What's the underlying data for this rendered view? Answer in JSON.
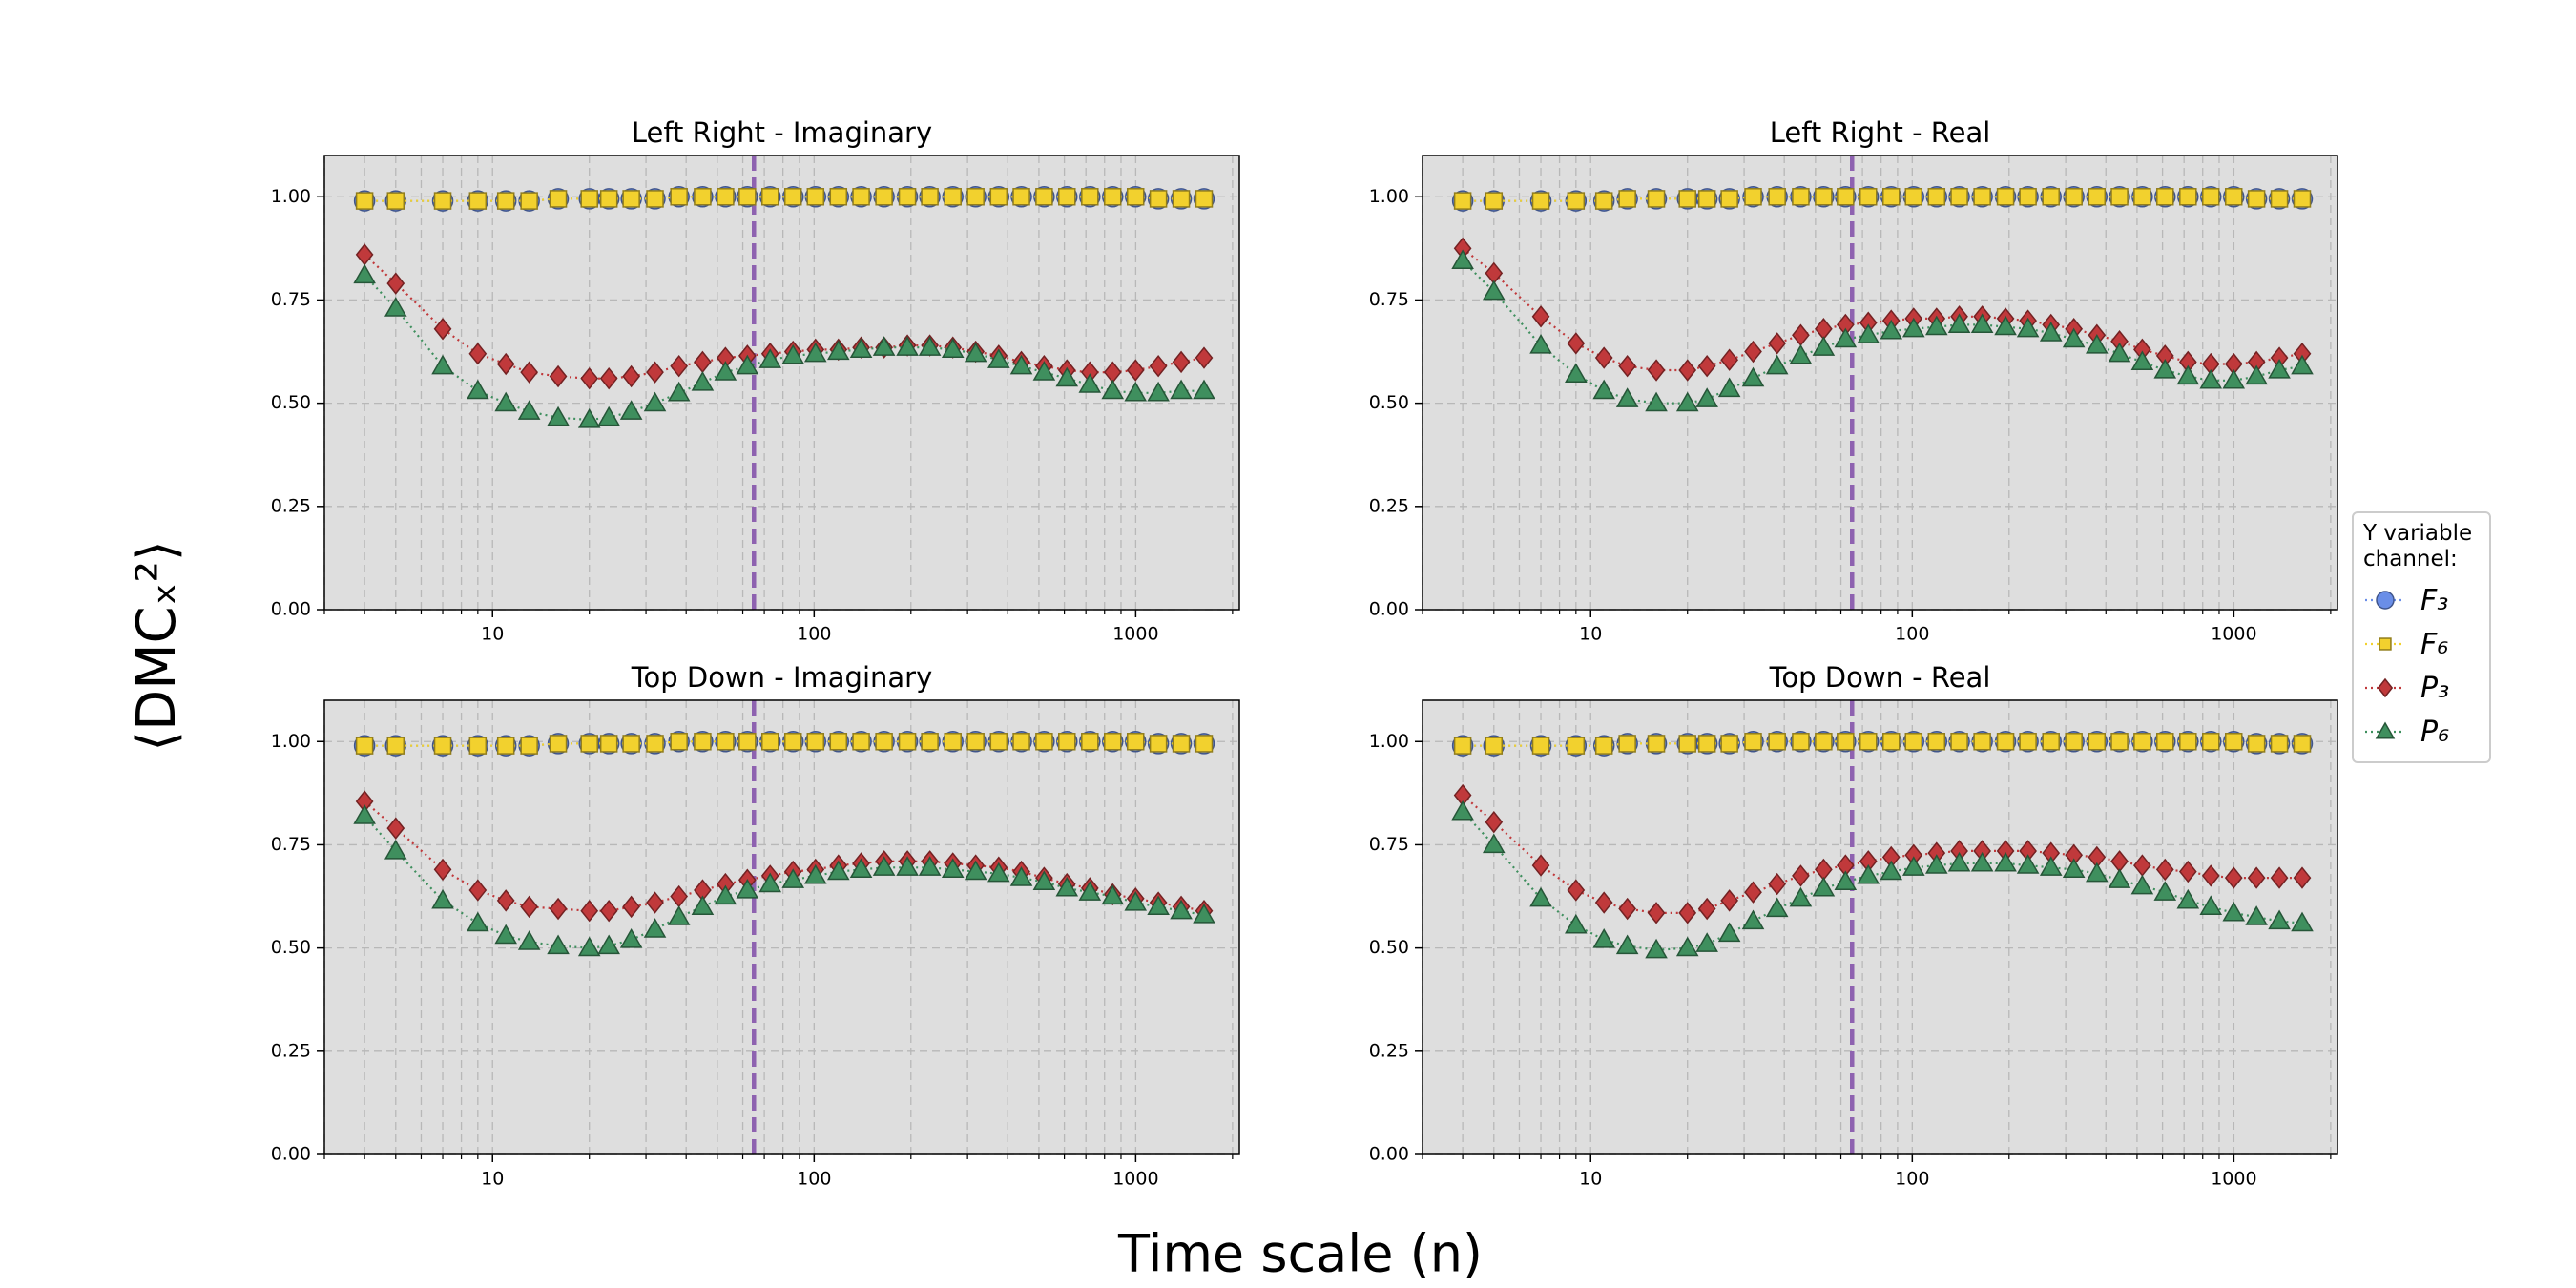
{
  "figure": {
    "xlabel": "Time scale (n)",
    "ylabel": "⟨DMCₓ²⟩",
    "legend_title": "Y variable channel:"
  },
  "chart_data": [
    {
      "type": "line",
      "title": "Left Right - Imaginary",
      "log_x": true,
      "grid": true,
      "x": [
        4,
        5,
        7,
        9,
        11,
        13,
        16,
        20,
        23,
        27,
        32,
        38,
        45,
        53,
        62,
        73,
        86,
        101,
        119,
        140,
        165,
        195,
        229,
        270,
        318,
        375,
        441,
        519,
        611,
        720,
        848,
        999,
        1176,
        1385,
        1631
      ],
      "xlim": [
        3,
        2100
      ],
      "xticks": [
        10,
        100,
        1000
      ],
      "xminor": [
        3,
        4,
        5,
        6,
        7,
        8,
        9,
        20,
        30,
        40,
        50,
        60,
        70,
        80,
        90,
        200,
        300,
        400,
        500,
        600,
        700,
        800,
        900,
        2000
      ],
      "ylim": [
        0,
        1.1
      ],
      "yticks": [
        {
          "value": 0,
          "label": "0.00"
        },
        {
          "value": 0.25,
          "label": "0.25"
        },
        {
          "value": 0.5,
          "label": "0.50"
        },
        {
          "value": 0.75,
          "label": "0.75"
        },
        {
          "value": 1,
          "label": "1.00"
        }
      ],
      "vline": {
        "x": 65,
        "color": "#8e62b0"
      },
      "series": [
        {
          "name": "F₃",
          "color": "#6a8ee8",
          "marker": "circle",
          "values": [
            0.99,
            0.99,
            0.99,
            0.99,
            0.99,
            0.99,
            0.995,
            0.995,
            0.995,
            0.995,
            0.995,
            1,
            1,
            1,
            1,
            1,
            1,
            1,
            1,
            1,
            1,
            1,
            1,
            1,
            1,
            1,
            1,
            1,
            1,
            1,
            1,
            1,
            0.995,
            0.995,
            0.995
          ]
        },
        {
          "name": "F₆",
          "color": "#f2d12e",
          "marker": "square",
          "values": [
            0.99,
            0.99,
            0.99,
            0.99,
            0.99,
            0.99,
            0.995,
            0.995,
            0.995,
            0.995,
            0.995,
            1,
            1,
            1,
            1,
            1,
            1,
            1,
            1,
            1,
            1,
            1,
            1,
            1,
            1,
            1,
            1,
            1,
            1,
            1,
            1,
            1,
            0.995,
            0.995,
            0.995
          ]
        },
        {
          "name": "P₃",
          "color": "#c0393b",
          "marker": "diamond",
          "values": [
            0.86,
            0.79,
            0.68,
            0.62,
            0.595,
            0.575,
            0.565,
            0.56,
            0.56,
            0.565,
            0.575,
            0.59,
            0.6,
            0.61,
            0.615,
            0.62,
            0.625,
            0.63,
            0.63,
            0.635,
            0.635,
            0.64,
            0.64,
            0.635,
            0.625,
            0.615,
            0.6,
            0.59,
            0.58,
            0.575,
            0.575,
            0.58,
            0.59,
            0.6,
            0.61
          ]
        },
        {
          "name": "P₆",
          "color": "#3f8f5e",
          "marker": "triangle",
          "values": [
            0.81,
            0.73,
            0.59,
            0.53,
            0.5,
            0.48,
            0.465,
            0.46,
            0.465,
            0.48,
            0.5,
            0.525,
            0.55,
            0.575,
            0.59,
            0.605,
            0.615,
            0.62,
            0.625,
            0.63,
            0.635,
            0.635,
            0.635,
            0.63,
            0.62,
            0.605,
            0.59,
            0.575,
            0.56,
            0.545,
            0.53,
            0.525,
            0.525,
            0.53,
            0.53
          ]
        }
      ]
    },
    {
      "type": "line",
      "title": "Left Right - Real",
      "log_x": true,
      "grid": true,
      "x": [
        4,
        5,
        7,
        9,
        11,
        13,
        16,
        20,
        23,
        27,
        32,
        38,
        45,
        53,
        62,
        73,
        86,
        101,
        119,
        140,
        165,
        195,
        229,
        270,
        318,
        375,
        441,
        519,
        611,
        720,
        848,
        999,
        1176,
        1385,
        1631
      ],
      "xlim": [
        3,
        2100
      ],
      "xticks": [
        10,
        100,
        1000
      ],
      "xminor": [
        3,
        4,
        5,
        6,
        7,
        8,
        9,
        20,
        30,
        40,
        50,
        60,
        70,
        80,
        90,
        200,
        300,
        400,
        500,
        600,
        700,
        800,
        900,
        2000
      ],
      "ylim": [
        0,
        1.1
      ],
      "yticks": [
        {
          "value": 0,
          "label": "0.00"
        },
        {
          "value": 0.25,
          "label": "0.25"
        },
        {
          "value": 0.5,
          "label": "0.50"
        },
        {
          "value": 0.75,
          "label": "0.75"
        },
        {
          "value": 1,
          "label": "1.00"
        }
      ],
      "vline": {
        "x": 65,
        "color": "#8e62b0"
      },
      "series": [
        {
          "name": "F₃",
          "color": "#6a8ee8",
          "marker": "circle",
          "values": [
            0.99,
            0.99,
            0.99,
            0.99,
            0.99,
            0.995,
            0.995,
            0.995,
            0.995,
            0.995,
            1,
            1,
            1,
            1,
            1,
            1,
            1,
            1,
            1,
            1,
            1,
            1,
            1,
            1,
            1,
            1,
            1,
            1,
            1,
            1,
            1,
            1,
            0.995,
            0.995,
            0.995
          ]
        },
        {
          "name": "F₆",
          "color": "#f2d12e",
          "marker": "square",
          "values": [
            0.99,
            0.99,
            0.99,
            0.99,
            0.99,
            0.995,
            0.995,
            0.995,
            0.995,
            0.995,
            1,
            1,
            1,
            1,
            1,
            1,
            1,
            1,
            1,
            1,
            1,
            1,
            1,
            1,
            1,
            1,
            1,
            1,
            1,
            1,
            1,
            1,
            0.995,
            0.995,
            0.995
          ]
        },
        {
          "name": "P₃",
          "color": "#c0393b",
          "marker": "diamond",
          "values": [
            0.875,
            0.815,
            0.71,
            0.645,
            0.61,
            0.59,
            0.58,
            0.58,
            0.59,
            0.605,
            0.625,
            0.645,
            0.665,
            0.68,
            0.69,
            0.695,
            0.7,
            0.705,
            0.705,
            0.71,
            0.71,
            0.705,
            0.7,
            0.69,
            0.68,
            0.665,
            0.65,
            0.63,
            0.615,
            0.6,
            0.595,
            0.595,
            0.6,
            0.61,
            0.62
          ]
        },
        {
          "name": "P₆",
          "color": "#3f8f5e",
          "marker": "triangle",
          "values": [
            0.845,
            0.77,
            0.64,
            0.57,
            0.53,
            0.51,
            0.5,
            0.5,
            0.51,
            0.535,
            0.56,
            0.59,
            0.615,
            0.635,
            0.655,
            0.665,
            0.675,
            0.68,
            0.685,
            0.69,
            0.69,
            0.685,
            0.68,
            0.67,
            0.655,
            0.64,
            0.62,
            0.6,
            0.58,
            0.565,
            0.555,
            0.555,
            0.565,
            0.58,
            0.59
          ]
        }
      ]
    },
    {
      "type": "line",
      "title": "Top Down - Imaginary",
      "log_x": true,
      "grid": true,
      "x": [
        4,
        5,
        7,
        9,
        11,
        13,
        16,
        20,
        23,
        27,
        32,
        38,
        45,
        53,
        62,
        73,
        86,
        101,
        119,
        140,
        165,
        195,
        229,
        270,
        318,
        375,
        441,
        519,
        611,
        720,
        848,
        999,
        1176,
        1385,
        1631
      ],
      "xlim": [
        3,
        2100
      ],
      "xticks": [
        10,
        100,
        1000
      ],
      "xminor": [
        3,
        4,
        5,
        6,
        7,
        8,
        9,
        20,
        30,
        40,
        50,
        60,
        70,
        80,
        90,
        200,
        300,
        400,
        500,
        600,
        700,
        800,
        900,
        2000
      ],
      "ylim": [
        0,
        1.1
      ],
      "yticks": [
        {
          "value": 0,
          "label": "0.00"
        },
        {
          "value": 0.25,
          "label": "0.25"
        },
        {
          "value": 0.5,
          "label": "0.50"
        },
        {
          "value": 0.75,
          "label": "0.75"
        },
        {
          "value": 1,
          "label": "1.00"
        }
      ],
      "vline": {
        "x": 65,
        "color": "#8e62b0"
      },
      "series": [
        {
          "name": "F₃",
          "color": "#6a8ee8",
          "marker": "circle",
          "values": [
            0.99,
            0.99,
            0.99,
            0.99,
            0.99,
            0.99,
            0.995,
            0.995,
            0.995,
            0.995,
            0.995,
            1,
            1,
            1,
            1,
            1,
            1,
            1,
            1,
            1,
            1,
            1,
            1,
            1,
            1,
            1,
            1,
            1,
            1,
            1,
            1,
            1,
            0.995,
            0.995,
            0.995
          ]
        },
        {
          "name": "F₆",
          "color": "#f2d12e",
          "marker": "square",
          "values": [
            0.99,
            0.99,
            0.99,
            0.99,
            0.99,
            0.99,
            0.995,
            0.995,
            0.995,
            0.995,
            0.995,
            1,
            1,
            1,
            1,
            1,
            1,
            1,
            1,
            1,
            1,
            1,
            1,
            1,
            1,
            1,
            1,
            1,
            1,
            1,
            1,
            1,
            0.995,
            0.995,
            0.995
          ]
        },
        {
          "name": "P₃",
          "color": "#c0393b",
          "marker": "diamond",
          "values": [
            0.855,
            0.79,
            0.69,
            0.64,
            0.615,
            0.6,
            0.595,
            0.59,
            0.59,
            0.6,
            0.61,
            0.625,
            0.64,
            0.655,
            0.665,
            0.675,
            0.685,
            0.69,
            0.7,
            0.705,
            0.71,
            0.71,
            0.71,
            0.705,
            0.7,
            0.695,
            0.685,
            0.67,
            0.655,
            0.645,
            0.63,
            0.62,
            0.61,
            0.6,
            0.59
          ]
        },
        {
          "name": "P₆",
          "color": "#3f8f5e",
          "marker": "triangle",
          "values": [
            0.82,
            0.735,
            0.615,
            0.56,
            0.53,
            0.515,
            0.505,
            0.5,
            0.505,
            0.52,
            0.545,
            0.575,
            0.6,
            0.625,
            0.64,
            0.655,
            0.665,
            0.675,
            0.685,
            0.69,
            0.695,
            0.695,
            0.695,
            0.69,
            0.685,
            0.68,
            0.67,
            0.66,
            0.645,
            0.635,
            0.625,
            0.61,
            0.6,
            0.59,
            0.58
          ]
        }
      ]
    },
    {
      "type": "line",
      "title": "Top Down - Real",
      "log_x": true,
      "grid": true,
      "x": [
        4,
        5,
        7,
        9,
        11,
        13,
        16,
        20,
        23,
        27,
        32,
        38,
        45,
        53,
        62,
        73,
        86,
        101,
        119,
        140,
        165,
        195,
        229,
        270,
        318,
        375,
        441,
        519,
        611,
        720,
        848,
        999,
        1176,
        1385,
        1631
      ],
      "xlim": [
        3,
        2100
      ],
      "xticks": [
        10,
        100,
        1000
      ],
      "xminor": [
        3,
        4,
        5,
        6,
        7,
        8,
        9,
        20,
        30,
        40,
        50,
        60,
        70,
        80,
        90,
        200,
        300,
        400,
        500,
        600,
        700,
        800,
        900,
        2000
      ],
      "ylim": [
        0,
        1.1
      ],
      "yticks": [
        {
          "value": 0,
          "label": "0.00"
        },
        {
          "value": 0.25,
          "label": "0.25"
        },
        {
          "value": 0.5,
          "label": "0.50"
        },
        {
          "value": 0.75,
          "label": "0.75"
        },
        {
          "value": 1,
          "label": "1.00"
        }
      ],
      "vline": {
        "x": 65,
        "color": "#8e62b0"
      },
      "series": [
        {
          "name": "F₃",
          "color": "#6a8ee8",
          "marker": "circle",
          "values": [
            0.99,
            0.99,
            0.99,
            0.99,
            0.99,
            0.995,
            0.995,
            0.995,
            0.995,
            0.995,
            1,
            1,
            1,
            1,
            1,
            1,
            1,
            1,
            1,
            1,
            1,
            1,
            1,
            1,
            1,
            1,
            1,
            1,
            1,
            1,
            1,
            1,
            0.995,
            0.995,
            0.995
          ]
        },
        {
          "name": "F₆",
          "color": "#f2d12e",
          "marker": "square",
          "values": [
            0.99,
            0.99,
            0.99,
            0.99,
            0.99,
            0.995,
            0.995,
            0.995,
            0.995,
            0.995,
            1,
            1,
            1,
            1,
            1,
            1,
            1,
            1,
            1,
            1,
            1,
            1,
            1,
            1,
            1,
            1,
            1,
            1,
            1,
            1,
            1,
            1,
            0.995,
            0.995,
            0.995
          ]
        },
        {
          "name": "P₃",
          "color": "#c0393b",
          "marker": "diamond",
          "values": [
            0.87,
            0.805,
            0.7,
            0.64,
            0.61,
            0.595,
            0.585,
            0.585,
            0.595,
            0.615,
            0.635,
            0.655,
            0.675,
            0.69,
            0.7,
            0.71,
            0.72,
            0.725,
            0.73,
            0.735,
            0.735,
            0.735,
            0.735,
            0.73,
            0.725,
            0.72,
            0.71,
            0.7,
            0.69,
            0.685,
            0.675,
            0.67,
            0.67,
            0.67,
            0.67
          ]
        },
        {
          "name": "P₆",
          "color": "#3f8f5e",
          "marker": "triangle",
          "values": [
            0.83,
            0.75,
            0.62,
            0.555,
            0.52,
            0.505,
            0.495,
            0.5,
            0.51,
            0.535,
            0.565,
            0.595,
            0.62,
            0.645,
            0.66,
            0.675,
            0.685,
            0.695,
            0.7,
            0.705,
            0.705,
            0.705,
            0.7,
            0.695,
            0.69,
            0.68,
            0.665,
            0.65,
            0.635,
            0.615,
            0.6,
            0.585,
            0.575,
            0.565,
            0.56
          ]
        }
      ]
    }
  ]
}
